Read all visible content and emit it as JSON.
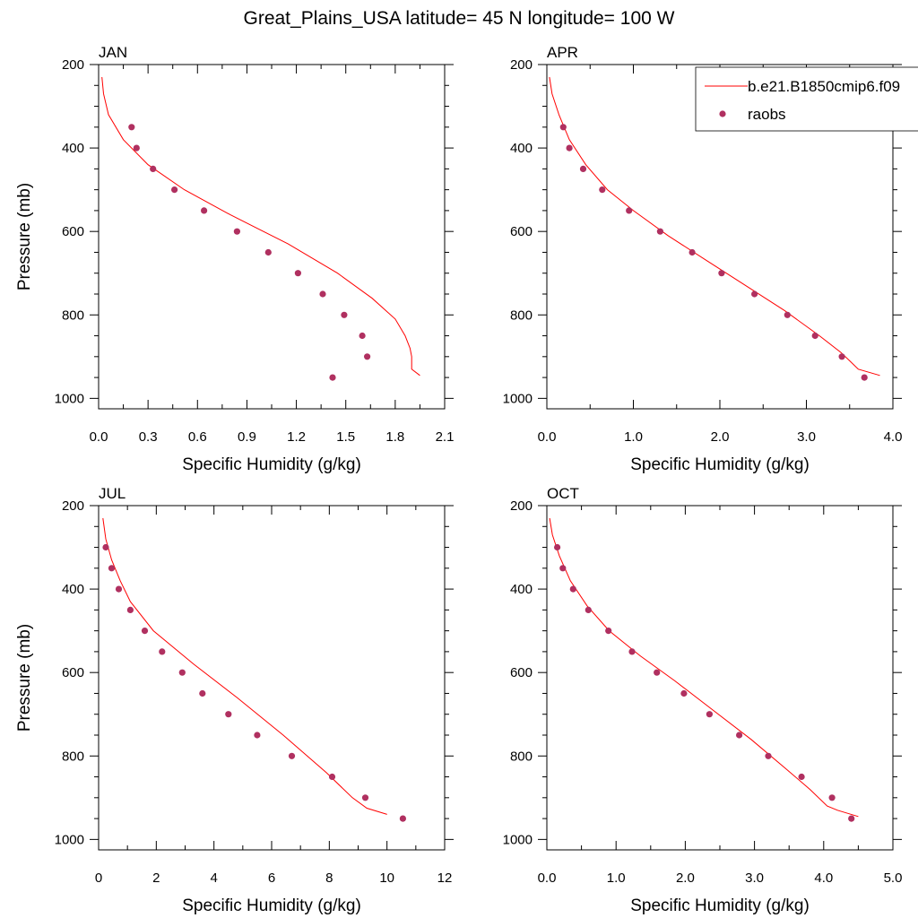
{
  "title": "Great_Plains_USA  latitude= 45 N longitude= 100 W",
  "colors": {
    "model": "#ff0000",
    "obs": "#b03060"
  },
  "legend": {
    "placement": "top-right",
    "entries": [
      {
        "label": "b.e21.B1850cmip6.f09",
        "marker": "line"
      },
      {
        "label": "raobs",
        "marker": "dot"
      }
    ]
  },
  "chart_data": [
    {
      "type": "line",
      "panel": "JAN",
      "xlabel": "Specific Humidity (g/kg)",
      "ylabel": "Pressure (mb)",
      "xlim": [
        0,
        2.1
      ],
      "ylim": [
        1025,
        200
      ],
      "xticks": [
        0,
        0.3,
        0.6,
        0.9,
        1.2,
        1.5,
        1.8,
        2.1
      ],
      "xtick_labels": [
        "0.0",
        "0.3",
        "0.6",
        "0.9",
        "1.2",
        "1.5",
        "1.8",
        "2.1"
      ],
      "yticks": [
        200,
        400,
        600,
        800,
        1000
      ],
      "ytick_labels": [
        "200",
        "400",
        "600",
        "800",
        "1000"
      ],
      "series": [
        {
          "kind": "line",
          "x": [
            0.02,
            0.03,
            0.06,
            0.15,
            0.3,
            0.52,
            0.8,
            1.15,
            1.45,
            1.66,
            1.8,
            1.86,
            1.89,
            1.9,
            1.9,
            1.95
          ],
          "y": [
            230,
            270,
            320,
            380,
            440,
            500,
            560,
            630,
            700,
            760,
            810,
            850,
            880,
            900,
            930,
            945
          ]
        },
        {
          "kind": "scatter",
          "x": [
            0.2,
            0.23,
            0.33,
            0.46,
            0.64,
            0.84,
            1.03,
            1.21,
            1.36,
            1.49,
            1.6,
            1.63,
            1.42
          ],
          "y": [
            350,
            400,
            450,
            500,
            550,
            600,
            650,
            700,
            750,
            800,
            850,
            900,
            950
          ]
        }
      ]
    },
    {
      "type": "line",
      "panel": "APR",
      "xlabel": "Specific Humidity (g/kg)",
      "ylabel": "",
      "xlim": [
        0,
        4.0
      ],
      "ylim": [
        1025,
        200
      ],
      "xticks": [
        0,
        1,
        2,
        3,
        4
      ],
      "xtick_labels": [
        "0.0",
        "1.0",
        "2.0",
        "3.0",
        "4.0"
      ],
      "yticks": [
        200,
        400,
        600,
        800,
        1000
      ],
      "ytick_labels": [
        "200",
        "400",
        "600",
        "800",
        "1000"
      ],
      "series": [
        {
          "kind": "line",
          "x": [
            0.03,
            0.06,
            0.14,
            0.26,
            0.45,
            0.7,
            1.0,
            1.4,
            1.85,
            2.3,
            2.75,
            3.15,
            3.4,
            3.5,
            3.6,
            3.85
          ],
          "y": [
            230,
            270,
            320,
            380,
            440,
            500,
            550,
            610,
            670,
            730,
            790,
            850,
            890,
            910,
            930,
            945
          ]
        },
        {
          "kind": "scatter",
          "x": [
            0.19,
            0.26,
            0.42,
            0.64,
            0.95,
            1.31,
            1.68,
            2.02,
            2.4,
            2.78,
            3.1,
            3.41,
            3.67
          ],
          "y": [
            350,
            400,
            450,
            500,
            550,
            600,
            650,
            700,
            750,
            800,
            850,
            900,
            950
          ]
        }
      ]
    },
    {
      "type": "line",
      "panel": "JUL",
      "xlabel": "Specific Humidity (g/kg)",
      "ylabel": "Pressure (mb)",
      "xlim": [
        0,
        12
      ],
      "ylim": [
        1025,
        200
      ],
      "xticks": [
        0,
        2,
        4,
        6,
        8,
        10,
        12
      ],
      "xtick_labels": [
        "0",
        "2",
        "4",
        "6",
        "8",
        "10",
        "12"
      ],
      "yticks": [
        200,
        400,
        600,
        800,
        1000
      ],
      "ytick_labels": [
        "200",
        "400",
        "600",
        "800",
        "1000"
      ],
      "series": [
        {
          "kind": "line",
          "x": [
            0.15,
            0.25,
            0.45,
            0.75,
            1.1,
            1.9,
            3.3,
            4.8,
            6.4,
            7.9,
            8.8,
            9.3,
            10.0
          ],
          "y": [
            230,
            280,
            330,
            380,
            430,
            500,
            580,
            660,
            750,
            840,
            900,
            925,
            940
          ]
        },
        {
          "kind": "scatter",
          "x": [
            0.25,
            0.45,
            0.7,
            1.1,
            1.6,
            2.2,
            2.9,
            3.6,
            4.5,
            5.5,
            6.7,
            8.1,
            9.25,
            10.55
          ],
          "y": [
            300,
            350,
            400,
            450,
            500,
            550,
            600,
            650,
            700,
            750,
            800,
            850,
            900,
            950
          ]
        }
      ]
    },
    {
      "type": "line",
      "panel": "OCT",
      "xlabel": "Specific Humidity (g/kg)",
      "ylabel": "",
      "xlim": [
        0,
        5.0
      ],
      "ylim": [
        1025,
        200
      ],
      "xticks": [
        0,
        1,
        2,
        3,
        4,
        5
      ],
      "xtick_labels": [
        "0.0",
        "1.0",
        "2.0",
        "3.0",
        "4.0",
        "5.0"
      ],
      "yticks": [
        200,
        400,
        600,
        800,
        1000
      ],
      "ytick_labels": [
        "200",
        "400",
        "600",
        "800",
        "1000"
      ],
      "series": [
        {
          "kind": "line",
          "x": [
            0.04,
            0.08,
            0.18,
            0.34,
            0.58,
            0.9,
            1.35,
            1.85,
            2.4,
            2.95,
            3.45,
            3.8,
            4.05,
            4.2,
            4.5
          ],
          "y": [
            230,
            270,
            320,
            380,
            440,
            500,
            560,
            620,
            690,
            760,
            830,
            880,
            920,
            930,
            945
          ]
        },
        {
          "kind": "scatter",
          "x": [
            0.15,
            0.23,
            0.38,
            0.6,
            0.89,
            1.23,
            1.59,
            1.98,
            2.35,
            2.78,
            3.2,
            3.68,
            4.12,
            4.4
          ],
          "y": [
            300,
            350,
            400,
            450,
            500,
            550,
            600,
            650,
            700,
            750,
            800,
            850,
            900,
            950
          ]
        }
      ]
    }
  ]
}
